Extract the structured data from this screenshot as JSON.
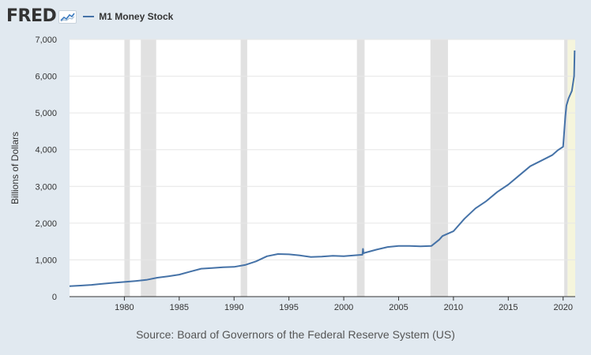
{
  "header": {
    "logo_text": "FRED",
    "legend_label": "M1 Money Stock"
  },
  "footer": {
    "source": "Source: Board of Governors of the Federal Reserve System (US)"
  },
  "chart_data": {
    "type": "line",
    "title": "",
    "xlabel": "",
    "ylabel": "Billions of Dollars",
    "xlim": [
      1975,
      2021.1
    ],
    "ylim": [
      0,
      7000
    ],
    "x_ticks": [
      1980,
      1985,
      1990,
      1995,
      2000,
      2005,
      2010,
      2015,
      2020
    ],
    "y_ticks": [
      0,
      1000,
      2000,
      3000,
      4000,
      5000,
      6000,
      7000
    ],
    "y_tick_labels": [
      "0",
      "1,000",
      "2,000",
      "3,000",
      "4,000",
      "5,000",
      "6,000",
      "7,000"
    ],
    "grid": "horizontal",
    "line_color": "#4572a7",
    "recession_color": "#e1e1e1",
    "highlight_color": "#f5f5dc",
    "recessions": [
      [
        1980.0,
        1980.5
      ],
      [
        1981.5,
        1982.9
      ],
      [
        1990.6,
        1991.2
      ],
      [
        2001.2,
        2001.9
      ],
      [
        2007.9,
        2009.5
      ],
      [
        2020.1,
        2020.4
      ]
    ],
    "highlight": [
      2020.4,
      2021.1
    ],
    "series": [
      {
        "name": "M1 Money Stock",
        "x": [
          1975,
          1976,
          1977,
          1978,
          1979,
          1980,
          1981,
          1982,
          1983,
          1984,
          1985,
          1986,
          1987,
          1988,
          1989,
          1990,
          1991,
          1992,
          1993,
          1994,
          1995,
          1996,
          1997,
          1998,
          1999,
          2000,
          2001.7,
          2001.75,
          2001.8,
          2002,
          2003,
          2004,
          2005,
          2006,
          2007,
          2008,
          2008.7,
          2009,
          2010,
          2011,
          2012,
          2013,
          2014,
          2015,
          2016,
          2017,
          2018,
          2019,
          2019.5,
          2020.0,
          2020.2,
          2020.3,
          2020.5,
          2020.8,
          2021.0,
          2021.05
        ],
        "values": [
          285,
          300,
          320,
          350,
          375,
          400,
          425,
          455,
          515,
          555,
          600,
          680,
          760,
          780,
          800,
          810,
          860,
          960,
          1100,
          1160,
          1150,
          1120,
          1080,
          1090,
          1110,
          1100,
          1140,
          1300,
          1180,
          1200,
          1280,
          1350,
          1380,
          1380,
          1370,
          1380,
          1550,
          1650,
          1780,
          2120,
          2400,
          2600,
          2850,
          3050,
          3300,
          3550,
          3700,
          3850,
          3980,
          4080,
          4900,
          5200,
          5400,
          5600,
          6000,
          6700
        ]
      }
    ]
  }
}
